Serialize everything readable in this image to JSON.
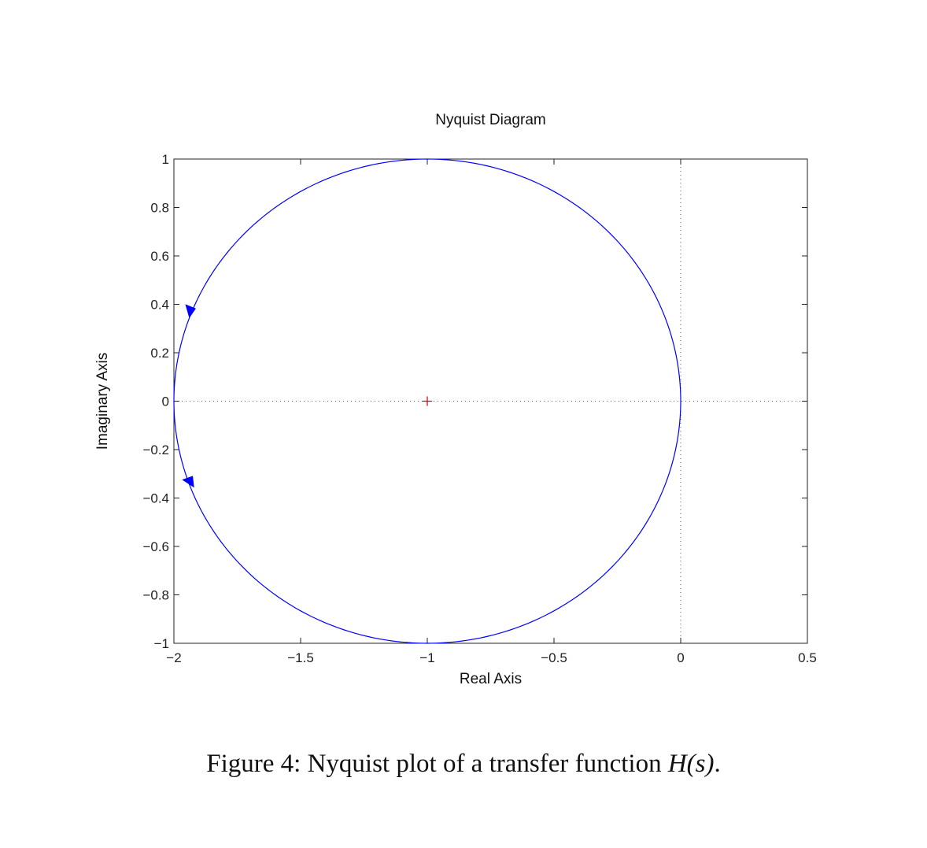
{
  "chart_data": {
    "type": "line",
    "title": "Nyquist Diagram",
    "xlabel": "Real Axis",
    "ylabel": "Imaginary Axis",
    "xlim": [
      -2,
      0.5
    ],
    "ylim": [
      -1,
      1
    ],
    "xticks": [
      -2,
      -1.5,
      -1,
      -0.5,
      0,
      0.5
    ],
    "yticks": [
      -1,
      -0.8,
      -0.6,
      -0.4,
      -0.2,
      0,
      0.2,
      0.4,
      0.6,
      0.8,
      1
    ],
    "xtick_labels": [
      "−2",
      "−1.5",
      "−1",
      "−0.5",
      "0",
      "0.5"
    ],
    "ytick_labels": [
      "−1",
      "−0.8",
      "−0.6",
      "−0.4",
      "−0.2",
      "0",
      "0.2",
      "0.4",
      "0.6",
      "0.8",
      "1"
    ],
    "grid": false,
    "reference_lines": {
      "x": 0,
      "y": 0,
      "style": "dotted"
    },
    "series": [
      {
        "curve": "circle",
        "center": [
          -1,
          0
        ],
        "radius": 1,
        "color": "#0000ff",
        "direction_arrows": [
          {
            "x": -1.93,
            "y": 0.37,
            "direction": "down"
          },
          {
            "x": -1.93,
            "y": -0.33,
            "direction": "down"
          }
        ]
      }
    ],
    "critical_point": {
      "x": -1,
      "y": 0,
      "marker": "+",
      "color": "#cc0000"
    }
  },
  "caption": {
    "prefix": "Figure 4: Nyquist plot of a transfer function ",
    "math": "H(s)",
    "suffix": "."
  }
}
